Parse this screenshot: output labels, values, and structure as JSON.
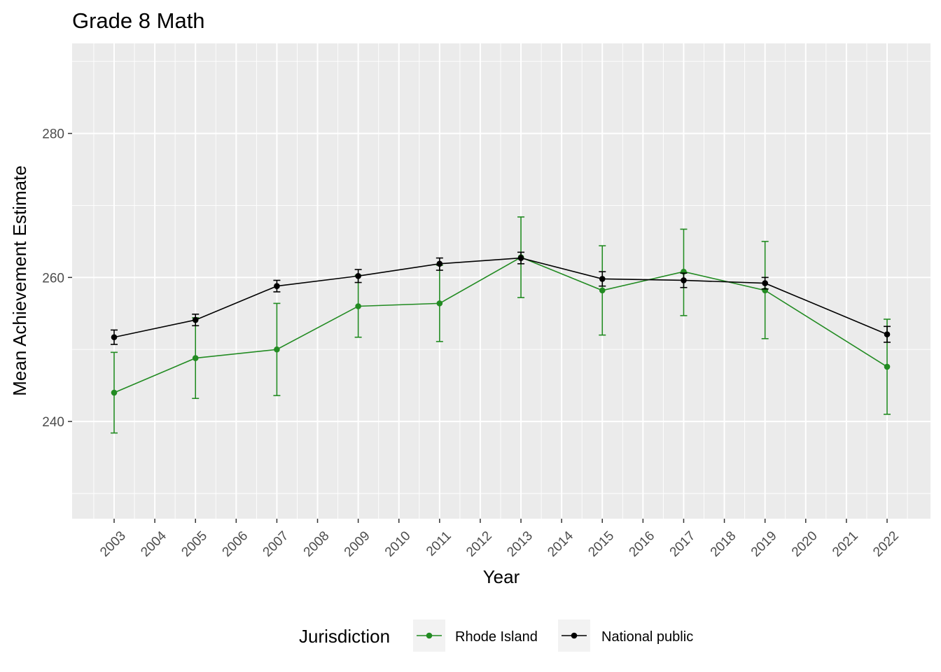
{
  "chart_data": {
    "type": "line",
    "title": "Grade 8 Math",
    "xlabel": "Year",
    "ylabel": "Mean Achievement Estimate",
    "categories": [
      "2003",
      "2004",
      "2005",
      "2006",
      "2007",
      "2008",
      "2009",
      "2010",
      "2011",
      "2012",
      "2013",
      "2014",
      "2015",
      "2016",
      "2017",
      "2018",
      "2019",
      "2020",
      "2021",
      "2022"
    ],
    "ylim": [
      226.5,
      292.5
    ],
    "yticks": [
      240,
      260,
      280
    ],
    "grid": true,
    "legend": {
      "title": "Jurisdiction",
      "position": "bottom"
    },
    "series": [
      {
        "name": "Rhode Island",
        "color": "#228B22",
        "points": [
          {
            "x": "2003",
            "y": 244.0,
            "lo": 238.4,
            "hi": 249.6
          },
          {
            "x": "2005",
            "y": 248.8,
            "lo": 243.2,
            "hi": 254.4
          },
          {
            "x": "2007",
            "y": 250.0,
            "lo": 243.6,
            "hi": 256.4
          },
          {
            "x": "2009",
            "y": 256.0,
            "lo": 251.7,
            "hi": 260.3
          },
          {
            "x": "2011",
            "y": 256.4,
            "lo": 251.1,
            "hi": 261.7
          },
          {
            "x": "2013",
            "y": 262.8,
            "lo": 257.2,
            "hi": 268.4
          },
          {
            "x": "2015",
            "y": 258.2,
            "lo": 252.0,
            "hi": 264.4
          },
          {
            "x": "2017",
            "y": 260.8,
            "lo": 254.7,
            "hi": 266.7
          },
          {
            "x": "2019",
            "y": 258.2,
            "lo": 251.5,
            "hi": 265.0
          },
          {
            "x": "2022",
            "y": 247.6,
            "lo": 241.0,
            "hi": 254.2
          }
        ]
      },
      {
        "name": "National public",
        "color": "#000000",
        "points": [
          {
            "x": "2003",
            "y": 251.7,
            "lo": 250.7,
            "hi": 252.7
          },
          {
            "x": "2005",
            "y": 254.1,
            "lo": 253.3,
            "hi": 254.9
          },
          {
            "x": "2007",
            "y": 258.8,
            "lo": 258.0,
            "hi": 259.6
          },
          {
            "x": "2009",
            "y": 260.2,
            "lo": 259.3,
            "hi": 261.1
          },
          {
            "x": "2011",
            "y": 261.9,
            "lo": 261.0,
            "hi": 262.7
          },
          {
            "x": "2013",
            "y": 262.7,
            "lo": 261.9,
            "hi": 263.5
          },
          {
            "x": "2015",
            "y": 259.8,
            "lo": 258.8,
            "hi": 260.8
          },
          {
            "x": "2017",
            "y": 259.6,
            "lo": 258.6,
            "hi": 260.6
          },
          {
            "x": "2019",
            "y": 259.2,
            "lo": 258.4,
            "hi": 260.0
          },
          {
            "x": "2022",
            "y": 252.1,
            "lo": 251.0,
            "hi": 253.2
          }
        ]
      }
    ]
  }
}
